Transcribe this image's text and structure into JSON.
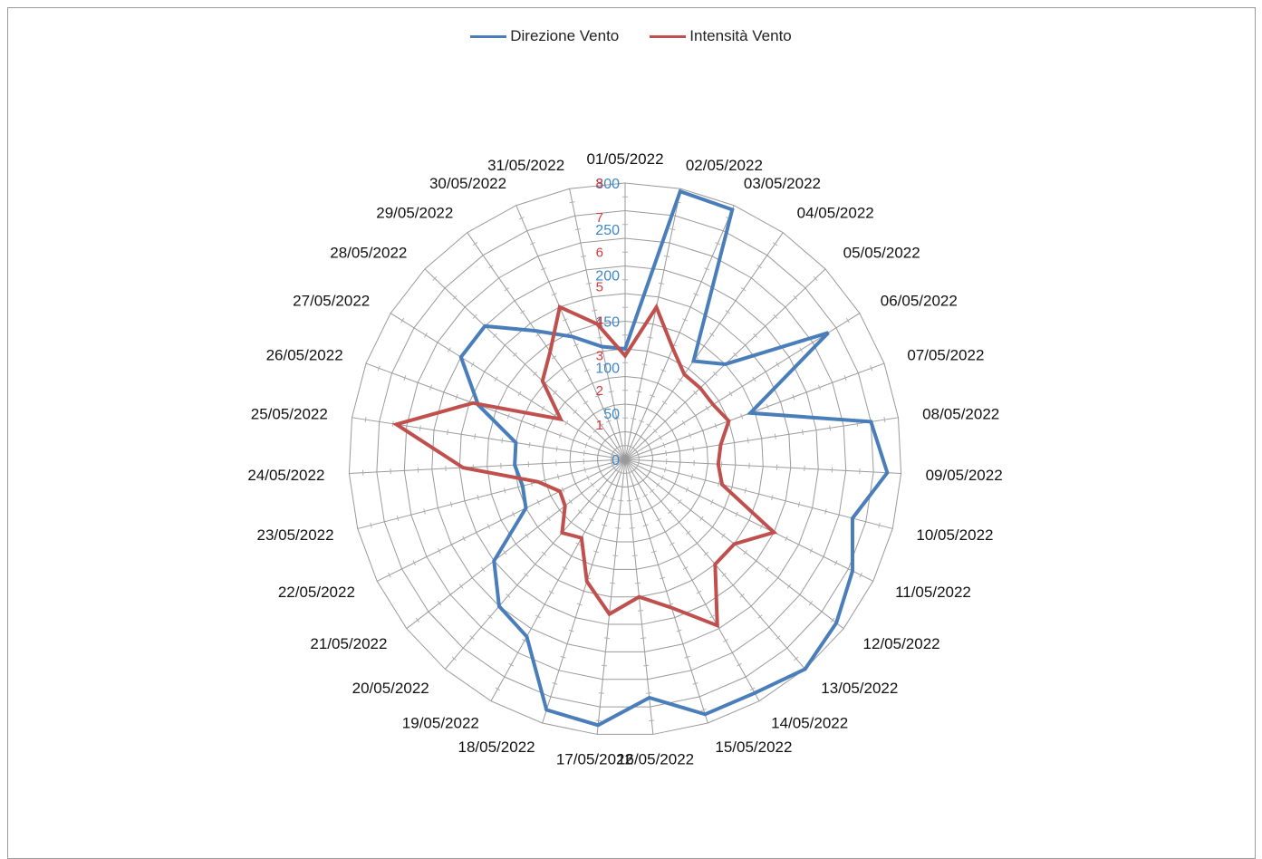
{
  "chart_data": {
    "type": "radar",
    "title": "",
    "categories": [
      "01/05/2022",
      "02/05/2022",
      "03/05/2022",
      "04/05/2022",
      "05/05/2022",
      "06/05/2022",
      "07/05/2022",
      "08/05/2022",
      "09/05/2022",
      "10/05/2022",
      "11/05/2022",
      "12/05/2022",
      "13/05/2022",
      "14/05/2022",
      "15/05/2022",
      "16/05/2022",
      "17/05/2022",
      "18/05/2022",
      "19/05/2022",
      "20/05/2022",
      "21/05/2022",
      "22/05/2022",
      "23/05/2022",
      "24/05/2022",
      "25/05/2022",
      "26/05/2022",
      "27/05/2022",
      "28/05/2022",
      "29/05/2022",
      "30/05/2022",
      "31/05/2022"
    ],
    "series": [
      {
        "name": "Direzione Vento",
        "color": "#4a7ebb",
        "axis": "primary",
        "values": [
          120,
          297,
          295,
          130,
          150,
          260,
          145,
          270,
          285,
          255,
          275,
          290,
          300,
          290,
          290,
          260,
          290,
          285,
          220,
          210,
          180,
          120,
          115,
          120,
          120,
          170,
          210,
          210,
          170,
          145,
          125
        ]
      },
      {
        "name": "Intensità Vento",
        "color": "#c0504d",
        "axis": "secondary",
        "values": [
          3,
          4.5,
          3.5,
          3,
          3,
          3,
          3.2,
          2.8,
          2.7,
          2.9,
          4.8,
          4,
          4,
          5.5,
          4.5,
          4,
          4.5,
          3.7,
          2.6,
          2.8,
          2.2,
          2.1,
          2.6,
          4.7,
          6.7,
          4.7,
          2.2,
          3.3,
          3.8,
          4.8,
          4
        ]
      }
    ],
    "primary_axis": {
      "min": 0,
      "max": 300,
      "ticks": [
        "0",
        "50",
        "100",
        "150",
        "200",
        "250",
        "300"
      ],
      "color": "#3f86c6"
    },
    "secondary_axis": {
      "min": 0,
      "max": 8,
      "ticks": [
        "1",
        "2",
        "3",
        "4",
        "5",
        "6",
        "7",
        "8"
      ],
      "color": "#d43a3a"
    },
    "grid": true,
    "legend": "top"
  },
  "legend": {
    "items": [
      {
        "label": "Direzione Vento",
        "color": "#4a7ebb"
      },
      {
        "label": "Intensità Vento",
        "color": "#c0504d"
      }
    ]
  }
}
